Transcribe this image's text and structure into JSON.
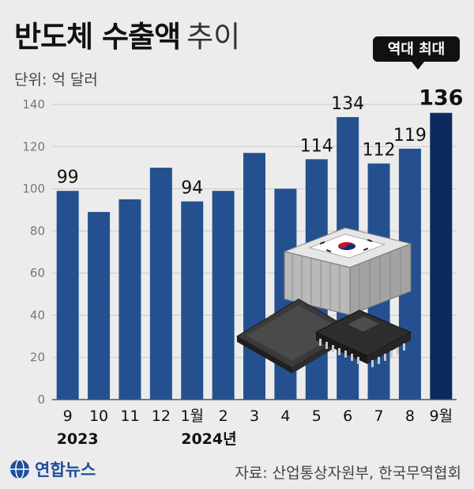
{
  "title_bold": "반도체 수출액",
  "title_light": "추이",
  "unit_label": "단위: 억 달러",
  "badge_text": "역대 최대",
  "source": "자료: 산업통상자원부, 한국무역협회",
  "logo_text": "연합뉴스",
  "colors": {
    "bar": "#24508f",
    "bar_highlight": "#0d2a5e",
    "grid": "#c9c9c9",
    "background": "#ececec"
  },
  "chart_data": {
    "type": "bar",
    "categories": [
      "9",
      "10",
      "11",
      "12",
      "1월",
      "2",
      "3",
      "4",
      "5",
      "6",
      "7",
      "8",
      "9월"
    ],
    "year_labels": [
      {
        "category": "9",
        "text": "2023"
      },
      {
        "category": "1월",
        "text": "2024년"
      }
    ],
    "values": [
      99,
      89,
      95,
      110,
      94,
      99,
      117,
      100,
      114,
      134,
      112,
      119,
      136
    ],
    "data_labels": [
      {
        "category": "9",
        "text": "99"
      },
      {
        "category": "1월",
        "text": "94"
      },
      {
        "category": "5",
        "text": "114"
      },
      {
        "category": "6",
        "text": "134"
      },
      {
        "category": "7",
        "text": "112"
      },
      {
        "category": "8",
        "text": "119"
      },
      {
        "category": "9월",
        "text": "136"
      }
    ],
    "yticks": [
      "0",
      "20",
      "40",
      "60",
      "80",
      "100",
      "120",
      "140"
    ],
    "ylim": [
      0,
      140
    ],
    "grid": true,
    "highlight_category": "9월"
  }
}
